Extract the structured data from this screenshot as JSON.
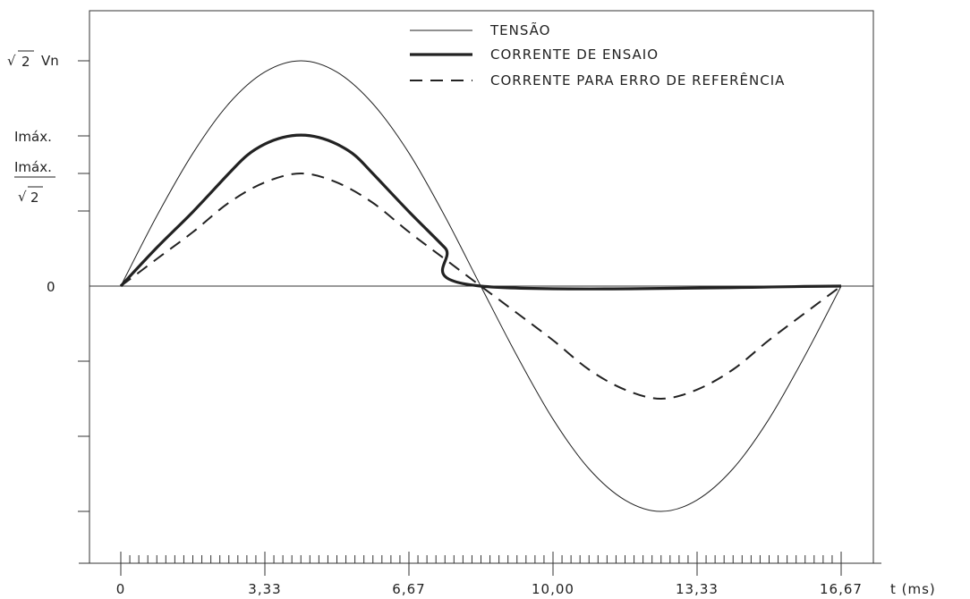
{
  "chart_data": {
    "type": "line",
    "x_label": "t (ms)",
    "x_ticks": [
      "0",
      "3,33",
      "6,67",
      "10,00",
      "13,33",
      "16,67"
    ],
    "x_range": [
      0,
      16.67
    ],
    "y_range": [
      -1.0,
      1.0
    ],
    "y_tick_labels": {
      "vn": "Vn",
      "vn_sqrt": "2",
      "imax": "Imáx.",
      "imax_sqrt_num": "Imáx.",
      "imax_sqrt_den": "2",
      "zero": "0"
    },
    "series": [
      {
        "name": "TENSÃO",
        "style": "thin",
        "x": [
          0,
          0.83,
          1.67,
          2.5,
          3.33,
          4.17,
          5.0,
          5.83,
          6.67,
          7.5,
          8.33,
          9.17,
          10.0,
          10.83,
          11.67,
          12.5,
          13.33,
          14.17,
          15.0,
          15.83,
          16.67
        ],
        "y": [
          0,
          0.31,
          0.59,
          0.81,
          0.95,
          1.0,
          0.95,
          0.81,
          0.59,
          0.31,
          0,
          -0.31,
          -0.59,
          -0.81,
          -0.95,
          -1.0,
          -0.95,
          -0.81,
          -0.59,
          -0.31,
          0
        ]
      },
      {
        "name": "CORRENTE DE ENSAIO",
        "style": "thick",
        "x": [
          0,
          0.83,
          1.67,
          2.5,
          2.92,
          3.33,
          3.75,
          4.17,
          4.58,
          5.0,
          5.42,
          5.83,
          6.67,
          7.5,
          8.33,
          16.67
        ],
        "y": [
          0,
          0.17,
          0.33,
          0.5,
          0.58,
          0.63,
          0.66,
          0.67,
          0.66,
          0.63,
          0.58,
          0.5,
          0.33,
          0.17,
          0,
          0
        ]
      },
      {
        "name": "CORRENTE PARA ERRO DE REFERÊNCIA",
        "style": "dashed",
        "x": [
          0,
          0.83,
          1.67,
          2.5,
          3.33,
          4.17,
          5.0,
          5.83,
          6.67,
          7.5,
          8.33,
          9.17,
          10.0,
          10.83,
          11.67,
          12.5,
          13.33,
          14.17,
          15.0,
          15.83,
          16.67
        ],
        "y": [
          0,
          0.12,
          0.24,
          0.37,
          0.46,
          0.5,
          0.46,
          0.37,
          0.24,
          0.12,
          0,
          -0.12,
          -0.24,
          -0.37,
          -0.46,
          -0.5,
          -0.46,
          -0.37,
          -0.24,
          -0.12,
          0
        ]
      }
    ],
    "legend_position": "top-right",
    "grid": false
  }
}
